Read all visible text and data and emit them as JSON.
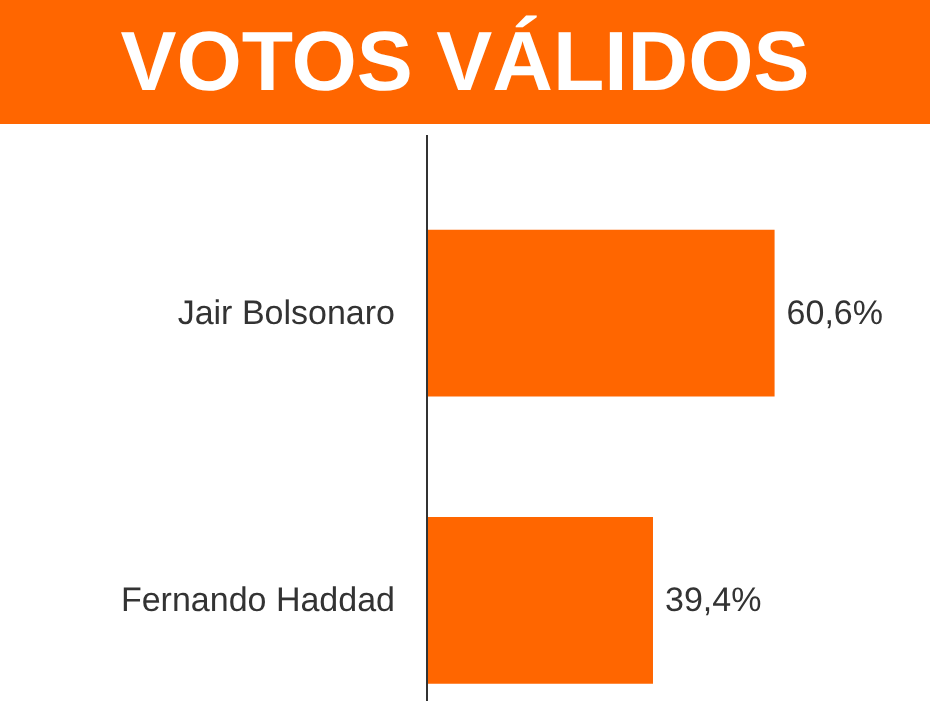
{
  "chart_data": {
    "type": "bar",
    "orientation": "horizontal",
    "title": "VOTOS VÁLIDOS",
    "categories": [
      "Jair Bolsonaro",
      "Fernando Haddad"
    ],
    "values": [
      60.6,
      39.4
    ],
    "value_labels": [
      "60,6%",
      "39,4%"
    ],
    "color": "#ff6600",
    "grid": false,
    "legend": false
  }
}
